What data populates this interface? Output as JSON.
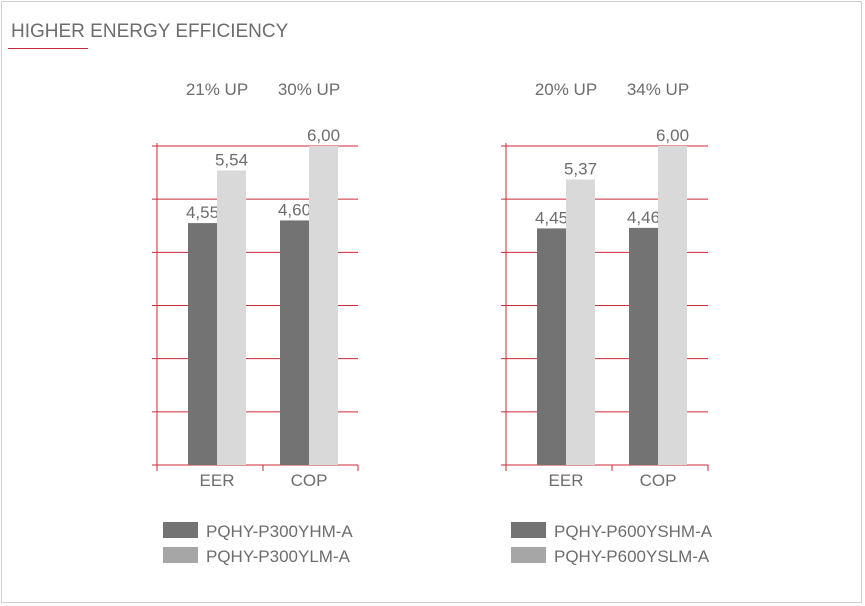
{
  "title": "HIGHER ENERGY EFFICIENCY",
  "colors": {
    "grid": "#cc2a36",
    "dark_bar": "#737373",
    "light_bar": "#d9d9d9",
    "legend_light": "#a6a6a6",
    "text": "#6d6d6d"
  },
  "chart_data": [
    {
      "type": "bar",
      "categories": [
        "EER",
        "COP"
      ],
      "series": [
        {
          "name": "PQHY-P300YHM-A",
          "values": [
            4.55,
            4.6
          ],
          "labels": [
            "4,55",
            "4,60"
          ]
        },
        {
          "name": "PQHY-P300YLM-A",
          "values": [
            5.54,
            6.0
          ],
          "labels": [
            "5,54",
            "6,00"
          ]
        }
      ],
      "improvements": [
        "21% UP",
        "30% UP"
      ],
      "ylim": [
        0,
        6
      ],
      "grid": true,
      "legend_position": "bottom"
    },
    {
      "type": "bar",
      "categories": [
        "EER",
        "COP"
      ],
      "series": [
        {
          "name": "PQHY-P600YSHM-A",
          "values": [
            4.45,
            4.46
          ],
          "labels": [
            "4,45",
            "4,46"
          ]
        },
        {
          "name": "PQHY-P600YSLM-A",
          "values": [
            5.37,
            6.0
          ],
          "labels": [
            "5,37",
            "6,00"
          ]
        }
      ],
      "improvements": [
        "20% UP",
        "34% UP"
      ],
      "ylim": [
        0,
        6
      ],
      "grid": true,
      "legend_position": "bottom"
    }
  ]
}
